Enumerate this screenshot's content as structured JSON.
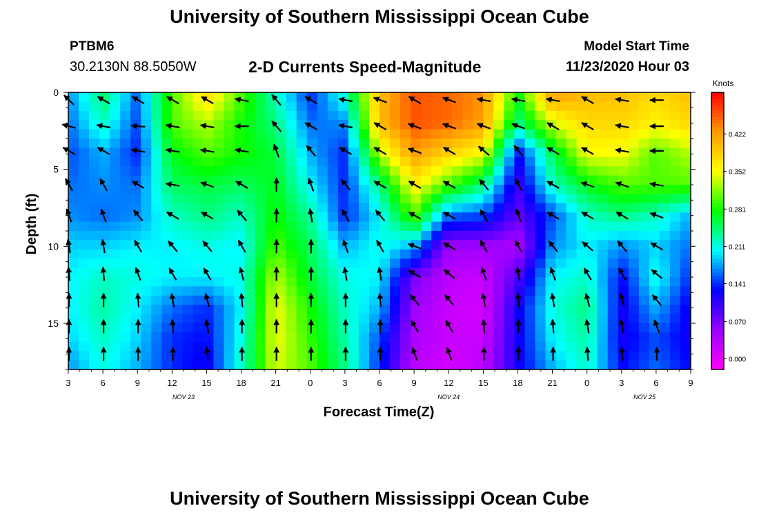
{
  "header": {
    "title": "University of Southern Mississippi Ocean Cube",
    "station_id": "PTBM6",
    "station_coords": "30.2130N 88.5050W",
    "plot_title": "2-D Currents Speed-Magnitude",
    "model_start_label": "Model Start Time",
    "model_start_value": "11/23/2020 Hour 03"
  },
  "footer": {
    "title": "University of Southern Mississippi Ocean Cube"
  },
  "colors": {
    "palette": [
      "#ff00ff",
      "#9900ff",
      "#0000ff",
      "#00ffff",
      "#00ff00",
      "#ffff00",
      "#ff9900",
      "#ff0000"
    ]
  },
  "chart_data": {
    "type": "heatmap",
    "xlabel": "Forecast Time(Z)",
    "ylabel": "Depth (ft)",
    "colorbar_label": "Knots",
    "colorbar_ticks": [
      "0.422",
      "0.352",
      "0.281",
      "0.211",
      "0.141",
      "0.070",
      "0.000"
    ],
    "colorbar_tick_values": [
      0.422,
      0.352,
      0.281,
      0.211,
      0.141,
      0.07,
      0.0
    ],
    "colorbar_range": [
      -0.02,
      0.5
    ],
    "x_tick_labels": [
      "3",
      "6",
      "9",
      "12",
      "15",
      "18",
      "21",
      "0",
      "3",
      "6",
      "9",
      "12",
      "15",
      "18",
      "21",
      "0",
      "3",
      "6",
      "9"
    ],
    "x_tick_hours": [
      0,
      3,
      6,
      9,
      12,
      15,
      18,
      21,
      24,
      27,
      30,
      33,
      36,
      39,
      42,
      45,
      48,
      51,
      54
    ],
    "date_labels": [
      {
        "label": "NOV 23",
        "hour": 10
      },
      {
        "label": "NOV 24",
        "hour": 33
      },
      {
        "label": "NOV 25",
        "hour": 50
      }
    ],
    "y_ticks": [
      0,
      5,
      10,
      15
    ],
    "y_tick_labels": [
      "0",
      "5",
      "10",
      "15"
    ],
    "ylim": [
      0,
      18
    ],
    "xlim_hours": [
      0,
      54
    ],
    "depth_levels_ft": [
      0,
      2,
      4,
      6,
      8,
      10,
      12,
      14,
      16,
      18
    ],
    "time_hours": [
      0,
      3,
      6,
      9,
      12,
      15,
      18,
      21,
      24,
      27,
      30,
      33,
      36,
      39,
      42,
      45,
      48,
      51,
      54
    ],
    "speed_knots": [
      [
        0.17,
        0.25,
        0.16,
        0.3,
        0.38,
        0.3,
        0.22,
        0.14,
        0.22,
        0.4,
        0.46,
        0.45,
        0.43,
        0.28,
        0.43,
        0.4,
        0.4,
        0.38,
        0.4
      ],
      [
        0.16,
        0.22,
        0.15,
        0.3,
        0.33,
        0.28,
        0.24,
        0.16,
        0.17,
        0.4,
        0.46,
        0.45,
        0.42,
        0.24,
        0.34,
        0.38,
        0.38,
        0.36,
        0.38
      ],
      [
        0.15,
        0.18,
        0.14,
        0.27,
        0.3,
        0.28,
        0.26,
        0.18,
        0.14,
        0.33,
        0.42,
        0.38,
        0.35,
        0.13,
        0.25,
        0.35,
        0.35,
        0.3,
        0.33
      ],
      [
        0.16,
        0.17,
        0.16,
        0.25,
        0.26,
        0.25,
        0.27,
        0.2,
        0.14,
        0.24,
        0.36,
        0.3,
        0.24,
        0.1,
        0.22,
        0.27,
        0.3,
        0.3,
        0.3
      ],
      [
        0.17,
        0.16,
        0.17,
        0.22,
        0.24,
        0.22,
        0.28,
        0.23,
        0.14,
        0.2,
        0.3,
        0.16,
        0.15,
        0.08,
        0.15,
        0.22,
        0.24,
        0.22,
        0.18
      ],
      [
        0.19,
        0.19,
        0.2,
        0.2,
        0.21,
        0.2,
        0.3,
        0.25,
        0.18,
        0.21,
        0.18,
        0.05,
        0.05,
        0.04,
        0.17,
        0.2,
        0.17,
        0.19,
        0.16
      ],
      [
        0.2,
        0.22,
        0.21,
        0.2,
        0.2,
        0.21,
        0.33,
        0.26,
        0.21,
        0.2,
        0.07,
        0.03,
        0.02,
        0.09,
        0.2,
        0.22,
        0.13,
        0.21,
        0.14
      ],
      [
        0.2,
        0.23,
        0.2,
        0.16,
        0.14,
        0.2,
        0.35,
        0.28,
        0.22,
        0.18,
        0.05,
        0.02,
        0.01,
        0.12,
        0.21,
        0.24,
        0.12,
        0.18,
        0.12
      ],
      [
        0.19,
        0.22,
        0.19,
        0.14,
        0.13,
        0.21,
        0.35,
        0.29,
        0.23,
        0.15,
        0.04,
        0.02,
        0.02,
        0.12,
        0.2,
        0.23,
        0.12,
        0.15,
        0.12
      ],
      [
        0.17,
        0.21,
        0.18,
        0.14,
        0.12,
        0.22,
        0.34,
        0.3,
        0.24,
        0.14,
        0.03,
        0.01,
        0.03,
        0.12,
        0.18,
        0.22,
        0.13,
        0.16,
        0.13
      ]
    ],
    "vector_depths_ft": [
      0.5,
      2.2,
      3.8,
      6,
      8,
      10,
      11.8,
      13.5,
      15.2,
      17
    ],
    "vector_direction_deg": [
      [
        315,
        300,
        300,
        300,
        300,
        280,
        320,
        300,
        280,
        290,
        300,
        290,
        280,
        280,
        280,
        300,
        280,
        270,
        270
      ],
      [
        285,
        280,
        275,
        280,
        280,
        270,
        320,
        300,
        280,
        300,
        290,
        290,
        290,
        290,
        300,
        300,
        280,
        270,
        270
      ],
      [
        300,
        300,
        280,
        280,
        280,
        280,
        340,
        320,
        300,
        300,
        290,
        300,
        310,
        320,
        300,
        300,
        280,
        270,
        270
      ],
      [
        330,
        330,
        300,
        280,
        290,
        300,
        360,
        340,
        320,
        300,
        300,
        300,
        320,
        330,
        300,
        290,
        290,
        280,
        270
      ],
      [
        340,
        340,
        320,
        300,
        300,
        320,
        360,
        350,
        330,
        320,
        300,
        300,
        330,
        340,
        300,
        300,
        300,
        290,
        280
      ],
      [
        350,
        350,
        330,
        320,
        320,
        330,
        360,
        360,
        340,
        330,
        290,
        300,
        330,
        330,
        320,
        310,
        320,
        300,
        290
      ],
      [
        355,
        355,
        340,
        330,
        330,
        345,
        360,
        360,
        350,
        350,
        300,
        310,
        340,
        350,
        340,
        330,
        330,
        310,
        290
      ],
      [
        360,
        360,
        355,
        350,
        345,
        355,
        360,
        360,
        360,
        355,
        320,
        320,
        350,
        355,
        350,
        345,
        345,
        320,
        300
      ],
      [
        360,
        360,
        360,
        355,
        350,
        360,
        360,
        360,
        360,
        360,
        330,
        330,
        355,
        360,
        355,
        350,
        350,
        340,
        310
      ],
      [
        360,
        360,
        360,
        360,
        355,
        360,
        360,
        360,
        360,
        360,
        340,
        340,
        360,
        360,
        360,
        355,
        355,
        360,
        320
      ]
    ]
  }
}
